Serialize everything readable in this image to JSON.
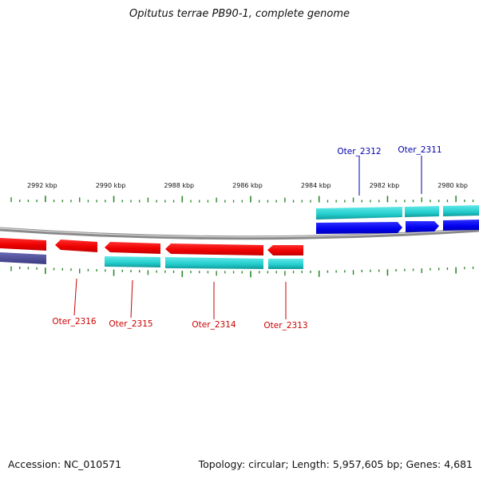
{
  "title": "Opitutus terrae PB90-1, complete genome",
  "footer": {
    "accession_prefix": "Accession:",
    "accession": "NC_010571",
    "summary": "Topology: circular; Length: 5,957,605 bp; Genes: 4,681"
  },
  "colors": {
    "forward_cds": "#0000ee",
    "forward_gene": "#1fc8c8",
    "reverse_cds": "#ee0000",
    "reverse_gene": "#1fc8c8",
    "other_feature": "#4a4a9a",
    "tick": "#2a8a2a",
    "backbone": "#888888",
    "forward_label": "#0000aa",
    "reverse_label": "#cc0000"
  },
  "axis": {
    "unit": "kbp",
    "view_start_kbp": 2979,
    "view_end_kbp": 2993,
    "major_ticks_kbp": [
      2992,
      2990,
      2988,
      2986,
      2984,
      2982,
      2980
    ],
    "major_tick_labels": [
      "2992 kbp",
      "2990 kbp",
      "2988 kbp",
      "2986 kbp",
      "2984 kbp",
      "2982 kbp",
      "2980 kbp"
    ]
  },
  "genes": [
    {
      "locus_tag": "Oter_2316",
      "strand": "reverse",
      "labeled": true
    },
    {
      "locus_tag": "Oter_2315",
      "strand": "reverse",
      "labeled": true
    },
    {
      "locus_tag": "Oter_2314",
      "strand": "reverse",
      "labeled": true
    },
    {
      "locus_tag": "Oter_2313",
      "strand": "reverse",
      "labeled": true
    },
    {
      "locus_tag": "Oter_2312",
      "strand": "forward",
      "labeled": true
    },
    {
      "locus_tag": "Oter_2311",
      "strand": "forward",
      "labeled": true
    }
  ]
}
